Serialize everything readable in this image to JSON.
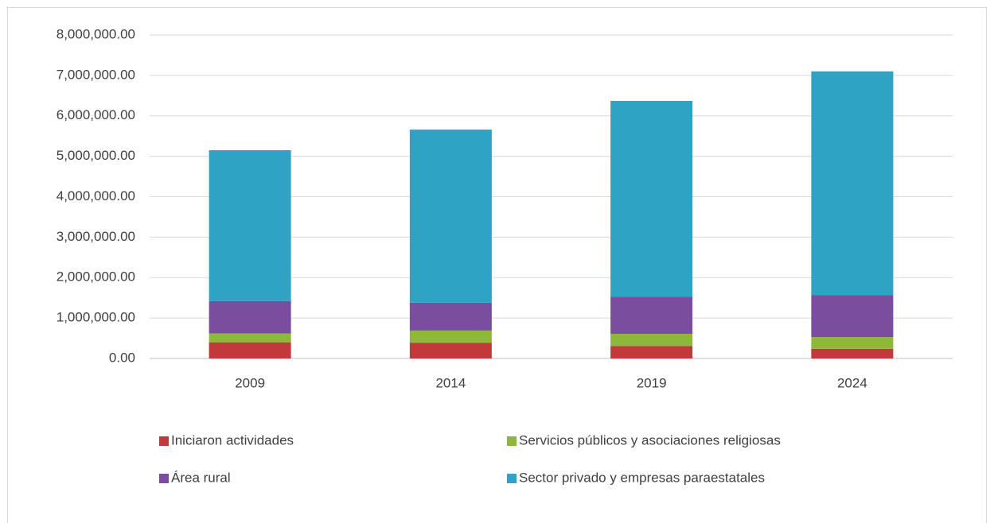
{
  "chart_data": {
    "type": "stacked_bar",
    "categories": [
      "2009",
      "2014",
      "2019",
      "2024"
    ],
    "series": [
      {
        "name": "Iniciaron actividades",
        "color": "#c0393b",
        "values": [
          400000,
          390000,
          310000,
          240000
        ]
      },
      {
        "name": "Servicios públicos y asociaciones religiosas",
        "color": "#8db83a",
        "values": [
          220000,
          300000,
          300000,
          290000
        ]
      },
      {
        "name": "Área rural",
        "color": "#7a4d9e",
        "values": [
          800000,
          690000,
          920000,
          1040000
        ]
      },
      {
        "name": "Sector privado y empresas paraestatales",
        "color": "#2ea3c4",
        "values": [
          3730000,
          4280000,
          4840000,
          5530000
        ]
      }
    ],
    "ylim": [
      0,
      8000000
    ],
    "yticks": [
      {
        "value": 0,
        "label": "0.00"
      },
      {
        "value": 1000000,
        "label": "1,000,000.00"
      },
      {
        "value": 2000000,
        "label": "2,000,000.00"
      },
      {
        "value": 3000000,
        "label": "3,000,000.00"
      },
      {
        "value": 4000000,
        "label": "4,000,000.00"
      },
      {
        "value": 5000000,
        "label": "5,000,000.00"
      },
      {
        "value": 6000000,
        "label": "6,000,000.00"
      },
      {
        "value": 7000000,
        "label": "7,000,000.00"
      },
      {
        "value": 8000000,
        "label": "8,000,000.00"
      }
    ],
    "grid": true,
    "legend": "bottom"
  }
}
